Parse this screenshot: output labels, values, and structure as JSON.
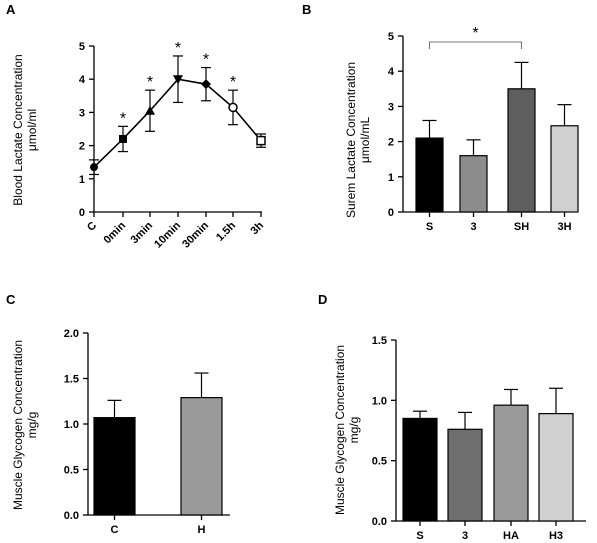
{
  "chart_data": [
    {
      "panel_label": "A",
      "type": "line",
      "ylabel": "Blood Lactate Concentration",
      "ylabel2": "μmol/ml",
      "ylim": [
        0,
        5
      ],
      "yticks": [
        0,
        1,
        2,
        3,
        4,
        5
      ],
      "categories": [
        "C",
        "0min",
        "3min",
        "10min",
        "30min",
        "1.5h",
        "3h"
      ],
      "values": [
        1.35,
        2.2,
        3.05,
        4.0,
        3.85,
        3.15,
        2.15
      ],
      "errors": [
        0.22,
        0.38,
        0.62,
        0.7,
        0.5,
        0.52,
        0.2
      ],
      "markers": [
        "circle",
        "square",
        "triangle",
        "triangle-down",
        "diamond",
        "open-circle",
        "open-square"
      ],
      "significance": [
        "",
        "*",
        "*",
        "*",
        "*",
        "*",
        ""
      ]
    },
    {
      "panel_label": "B",
      "type": "bar",
      "ylabel": "Surem Lactate Concentration",
      "ylabel2": "μmol/mL",
      "ylim": [
        0,
        5
      ],
      "yticks": [
        0,
        1,
        2,
        3,
        4,
        5
      ],
      "categories": [
        "S",
        "3",
        "SH",
        "3H"
      ],
      "values": [
        2.1,
        1.6,
        3.5,
        2.45
      ],
      "errors": [
        0.5,
        0.45,
        0.75,
        0.6
      ],
      "colors": [
        "#000000",
        "#8c8c8c",
        "#5e5e5e",
        "#d0d0d0"
      ],
      "bracket": {
        "from": 0,
        "to": 2,
        "label": "*"
      }
    },
    {
      "panel_label": "C",
      "type": "bar",
      "ylabel": "Muscle Glycogen Concentration",
      "ylabel2": "mg/g",
      "ylim": [
        0,
        2.0
      ],
      "yticks": [
        "0.0",
        "0.5",
        "1.0",
        "1.5",
        "2.0"
      ],
      "categories": [
        "C",
        "H"
      ],
      "values": [
        1.07,
        1.29
      ],
      "errors": [
        0.19,
        0.27
      ],
      "colors": [
        "#000000",
        "#9a9a9a"
      ]
    },
    {
      "panel_label": "D",
      "type": "bar",
      "ylabel": "Muscle Glycogen Concentration",
      "ylabel2": "mg/g",
      "ylim": [
        0,
        1.5
      ],
      "yticks": [
        "0.0",
        "0.5",
        "1.0",
        "1.5"
      ],
      "categories": [
        "S",
        "3",
        "HA",
        "H3"
      ],
      "values": [
        0.85,
        0.76,
        0.96,
        0.89
      ],
      "errors": [
        0.06,
        0.14,
        0.13,
        0.21
      ],
      "colors": [
        "#000000",
        "#6e6e6e",
        "#9a9a9a",
        "#d0d0d0"
      ]
    }
  ]
}
